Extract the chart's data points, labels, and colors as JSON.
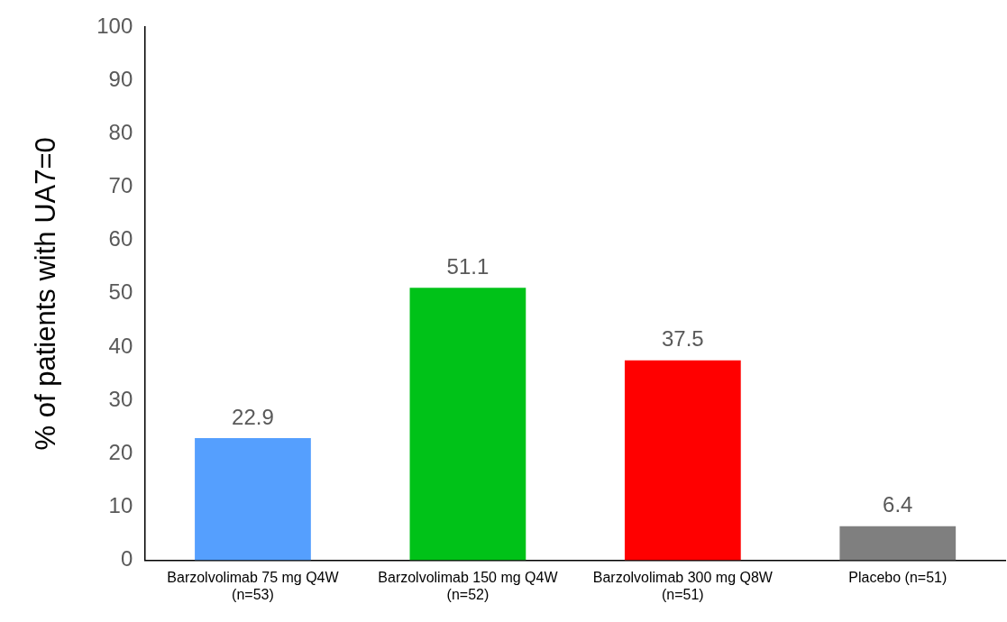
{
  "chart_data": {
    "type": "bar",
    "ylabel": "% of patients with UA7=0",
    "categories": [
      "Barzolvolimab 75 mg Q4W (n=53)",
      "Barzolvolimab 150 mg Q4W (n=52)",
      "Barzolvolimab 300 mg Q8W (n=51)",
      "Placebo (n=51)"
    ],
    "values": [
      22.9,
      51.1,
      37.5,
      6.4
    ],
    "colors": [
      "#559ffe",
      "#00c218",
      "#ff0000",
      "#7f7f7f"
    ],
    "ylim": [
      0,
      100
    ],
    "yticks": [
      0,
      10,
      20,
      30,
      40,
      50,
      60,
      70,
      80,
      90,
      100
    ],
    "grid": false,
    "legend": false,
    "data_labels": true
  }
}
